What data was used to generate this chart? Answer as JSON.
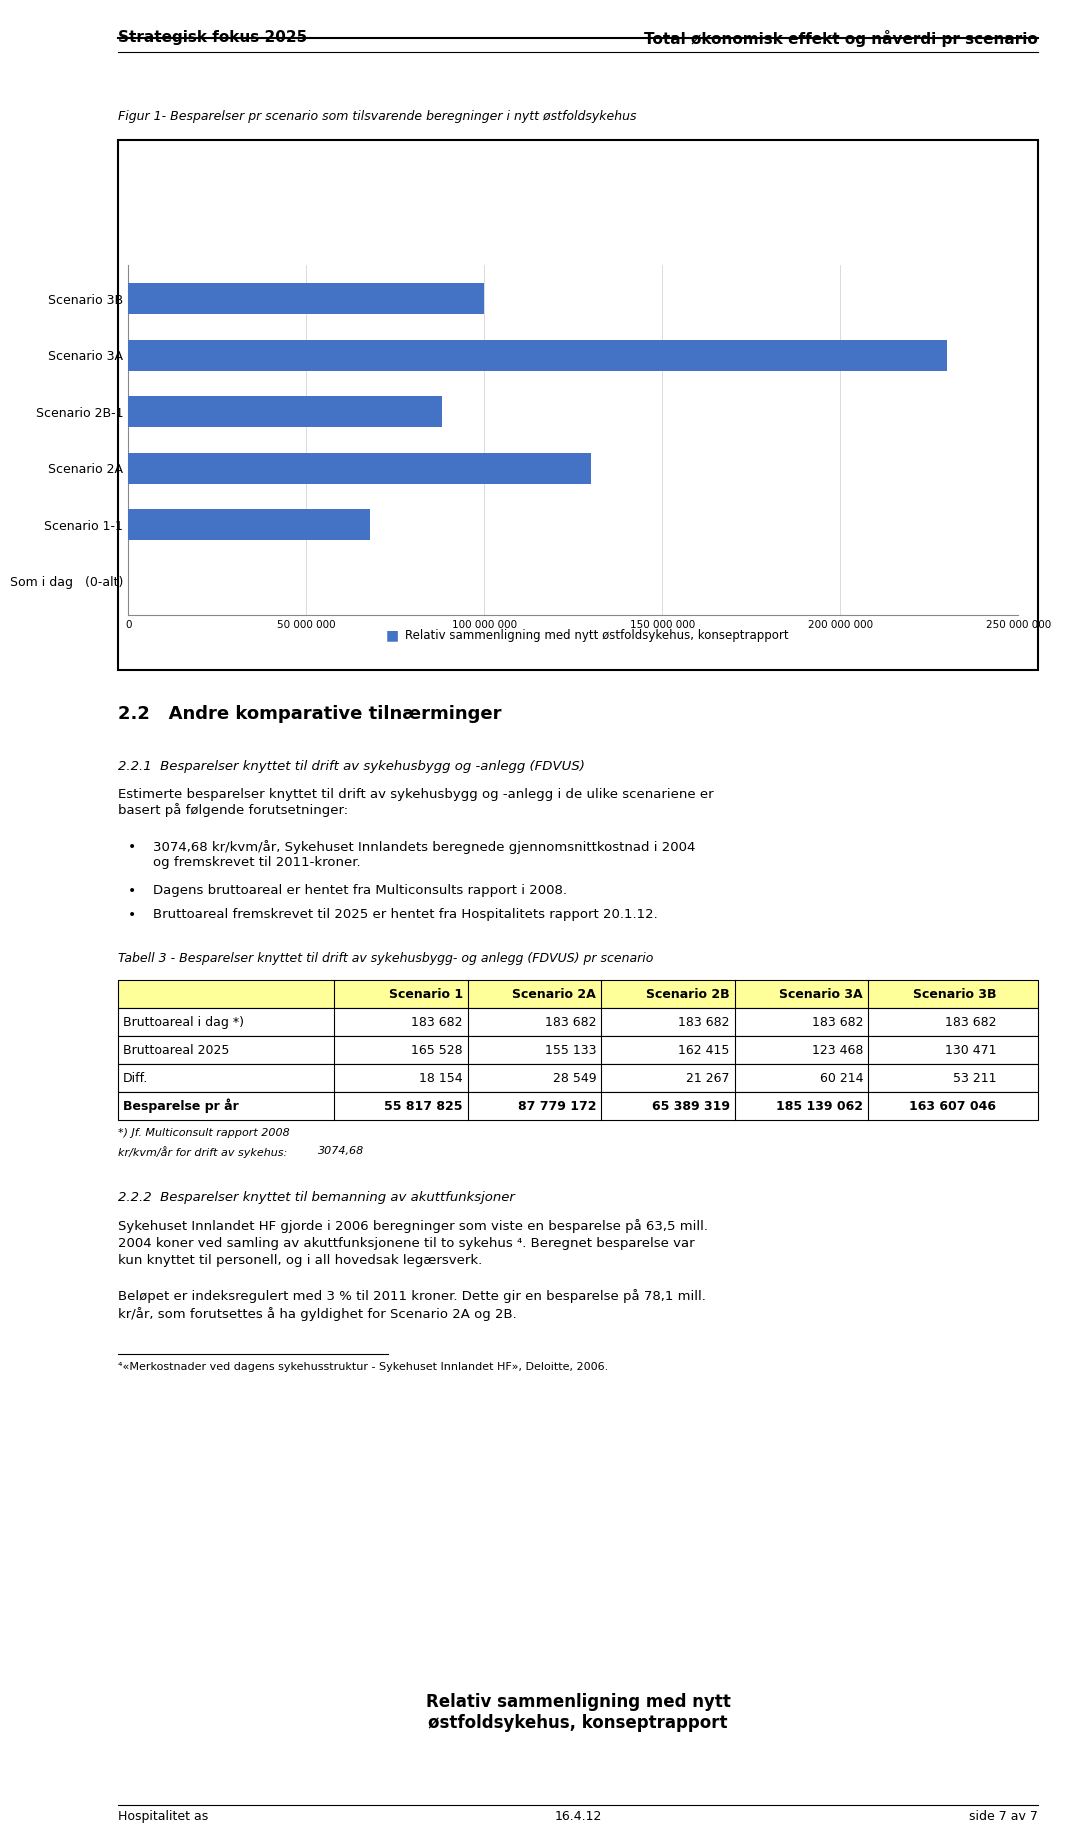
{
  "header_left": "Strategisk fokus 2025",
  "header_right": "Total økonomisk effekt og nåverdi pr scenario",
  "fig_caption": "Figur 1- Besparelser pr scenario som tilsvarende beregninger i nytt østfoldsykehus",
  "chart_title": "Relativ sammenligning med nytt\nøstfoldsykehus, konseptrapport",
  "categories": [
    "Scenario 3B",
    "Scenario 3A",
    "Scenario 2B-1",
    "Scenario 2A",
    "Scenario 1-1",
    "Som i dag   (0-alt)"
  ],
  "values": [
    100000000,
    230000000,
    88000000,
    130000000,
    68000000,
    0
  ],
  "bar_color": "#4472C4",
  "legend_label": "Relativ sammenligning med nytt østfoldsykehus, konseptrapport",
  "xlim": [
    0,
    250000000
  ],
  "xticks": [
    0,
    50000000,
    100000000,
    150000000,
    200000000,
    250000000
  ],
  "xtick_labels": [
    "0",
    "50 000 000",
    "100 000 000",
    "150 000 000",
    "200 000 000",
    "250 000 000"
  ],
  "section_22_title": "2.2   Andre komparative tilnærminger",
  "section_221_title": "2.2.1  Besparelser knyttet til drift av sykehusbygg og -anlegg (FDVUS)",
  "para1": "Estimerte besparelser knyttet til drift av sykehusbygg og -anlegg i de ulike scenariene er\nbasert på følgende forutsetninger:",
  "bullet1": "3074,68 kr/kvm/år, Sykehuset Innlandets beregnede gjennomsnittkostnad i 2004\nog fremskrevet til 2011-kroner.",
  "bullet2": "Dagens bruttoareal er hentet fra Multiconsults rapport i 2008.",
  "bullet3": "Bruttoareal fremskrevet til 2025 er hentet fra Hospitalitets rapport 20.1.12.",
  "table_caption": "Tabell 3 - Besparelser knyttet til drift av sykehusbygg- og anlegg (FDVUS) pr scenario",
  "table_col_headers": [
    "",
    "Scenario 1",
    "Scenario 2A",
    "Scenario 2B",
    "Scenario 3A",
    "Scenario 3B"
  ],
  "table_row1_label": "Bruttoareal i dag *)",
  "table_row1": [
    "183 682",
    "183 682",
    "183 682",
    "183 682",
    "183 682"
  ],
  "table_row2_label": "Bruttoareal 2025",
  "table_row2": [
    "165 528",
    "155 133",
    "162 415",
    "123 468",
    "130 471"
  ],
  "table_row3_label": "Diff.",
  "table_row3": [
    "18 154",
    "28 549",
    "21 267",
    "60 214",
    "53 211"
  ],
  "table_row4_label": "Besparelse pr år",
  "table_row4": [
    "55 817 825",
    "87 779 172",
    "65 389 319",
    "185 139 062",
    "163 607 046"
  ],
  "footnote1": "*) Jf. Multiconsult rapport 2008",
  "footnote2_label": "kr/kvm/år for drift av sykehus:",
  "footnote2_value": "3074,68",
  "section_222_title": "2.2.2  Besparelser knyttet til bemanning av akuttfunksjoner",
  "para2_line1": "Sykehuset Innlandet HF gjorde i 2006 beregninger som viste en besparelse på 63,5 mill.",
  "para2_line2": "2004 koner ved samling av akuttfunksjonene til to sykehus ⁴. Beregnet besparelse var",
  "para2_line3": "kun knyttet til personell, og i all hovedsak legærsverk.",
  "para3_line1": "Beløpet er indeksregulert med 3 % til 2011 kroner. Dette gir en besparelse på 78,1 mill.",
  "para3_line2": "kr/år, som forutsettes å ha gyldighet for Scenario 2A og 2B.",
  "footnote3": "⁴«Merkostnader ved dagens sykehusstruktur - Sykehuset Innlandet HF», Deloitte, 2006.",
  "footer_left": "Hospitalitet as",
  "footer_center": "16.4.12",
  "footer_right": "side 7 av 7",
  "bg_color": "#ffffff",
  "table_header_bg": "#FFFF99",
  "table_row1_bg": "#ffffff",
  "table_row2_bg": "#ffffff",
  "table_row3_bg": "#ffffff",
  "table_row4_bg": "#ffffff",
  "table_border_color": "#000000"
}
